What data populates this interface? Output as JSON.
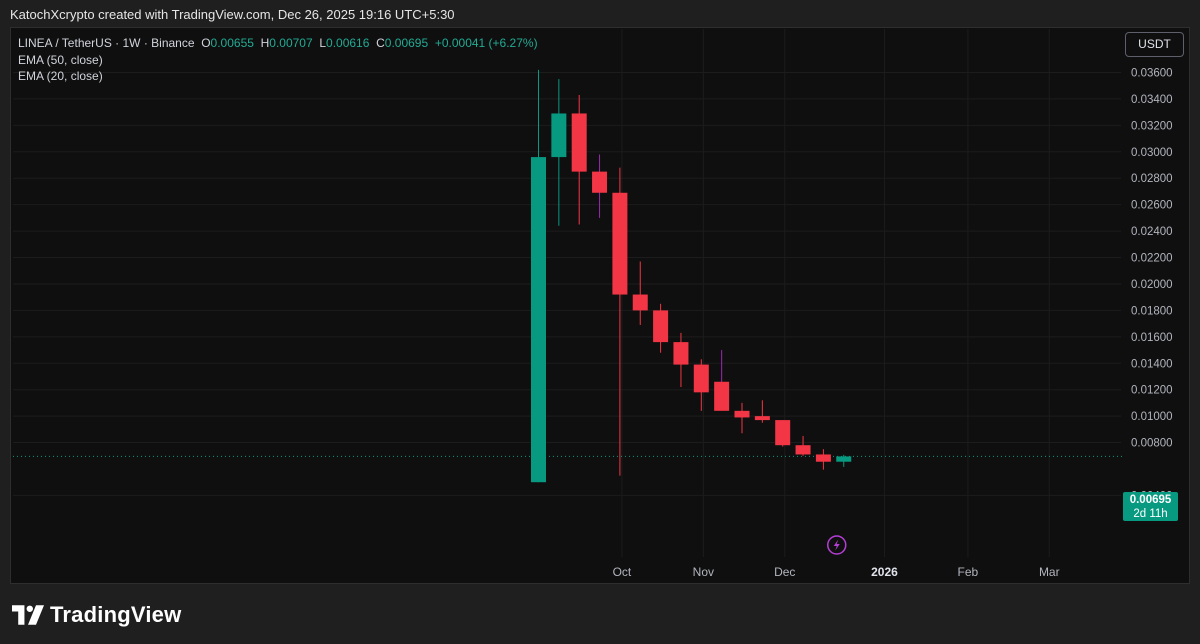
{
  "header": {
    "attribution": "KatochXcrypto created with TradingView.com, Dec 26, 2025 19:16 UTC+5:30"
  },
  "legend": {
    "symbol": "LINEA / TetherUS · 1W · Binance",
    "o_label": "O",
    "o_value": "0.00655",
    "h_label": "H",
    "h_value": "0.00707",
    "l_label": "L",
    "l_value": "0.00616",
    "c_label": "C",
    "c_value": "0.00695",
    "change": "+0.00041 (+6.27%)",
    "indicators": [
      "EMA (50, close)",
      "EMA (20, close)"
    ]
  },
  "currency_button": "USDT",
  "last_price": {
    "value": "0.00695",
    "countdown": "2d 11h"
  },
  "footer": {
    "brand": "TradingView"
  },
  "colors": {
    "up": "#089981",
    "down": "#f23645",
    "wick_purple": "#9c27b0",
    "background": "#0f0f0f"
  },
  "chart_data": {
    "type": "candlestick",
    "symbol": "LINEA / TetherUS",
    "interval": "1W",
    "exchange": "Binance",
    "ylim": [
      0.0036,
      0.0361
    ],
    "y_ticks": [
      "0.00400",
      "0.00800",
      "0.01000",
      "0.01200",
      "0.01400",
      "0.01600",
      "0.01800",
      "0.02000",
      "0.02200",
      "0.02400",
      "0.02600",
      "0.02800",
      "0.03000",
      "0.03200",
      "0.03400",
      "0.03600"
    ],
    "x_ticks": [
      {
        "label": "Oct",
        "week": 4.1
      },
      {
        "label": "Nov",
        "week": 8.1
      },
      {
        "label": "Dec",
        "week": 12.1
      },
      {
        "label": "2026",
        "week": 17.0
      },
      {
        "label": "Feb",
        "week": 21.1
      },
      {
        "label": "Mar",
        "week": 25.1
      }
    ],
    "candles": [
      {
        "week": 0,
        "o": 0.005,
        "h": 0.0362,
        "l": 0.005,
        "c": 0.0296
      },
      {
        "week": 1,
        "o": 0.0296,
        "h": 0.0355,
        "l": 0.0244,
        "c": 0.0329
      },
      {
        "week": 2,
        "o": 0.0329,
        "h": 0.0343,
        "l": 0.0245,
        "c": 0.0285
      },
      {
        "week": 3,
        "o": 0.0285,
        "h": 0.0298,
        "l": 0.025,
        "c": 0.0269
      },
      {
        "week": 4,
        "o": 0.0269,
        "h": 0.0288,
        "l": 0.0055,
        "c": 0.0192
      },
      {
        "week": 5,
        "o": 0.0192,
        "h": 0.0217,
        "l": 0.0169,
        "c": 0.018
      },
      {
        "week": 6,
        "o": 0.018,
        "h": 0.0185,
        "l": 0.0148,
        "c": 0.0156
      },
      {
        "week": 7,
        "o": 0.0156,
        "h": 0.0163,
        "l": 0.0122,
        "c": 0.0139
      },
      {
        "week": 8,
        "o": 0.0139,
        "h": 0.0143,
        "l": 0.0104,
        "c": 0.0118
      },
      {
        "week": 9,
        "o": 0.0126,
        "h": 0.015,
        "l": 0.0105,
        "c": 0.0104
      },
      {
        "week": 10,
        "o": 0.0104,
        "h": 0.011,
        "l": 0.0087,
        "c": 0.0099
      },
      {
        "week": 11,
        "o": 0.01,
        "h": 0.0112,
        "l": 0.0095,
        "c": 0.0097
      },
      {
        "week": 12,
        "o": 0.0097,
        "h": 0.0097,
        "l": 0.0077,
        "c": 0.0078
      },
      {
        "week": 13,
        "o": 0.0078,
        "h": 0.0085,
        "l": 0.007,
        "c": 0.0071
      },
      {
        "week": 14,
        "o": 0.0071,
        "h": 0.0075,
        "l": 0.00595,
        "c": 0.00655
      },
      {
        "week": 15,
        "o": 0.00655,
        "h": 0.00707,
        "l": 0.00616,
        "c": 0.00695
      }
    ],
    "last_price": 0.00695,
    "event_marker": {
      "type": "lightning",
      "week": 15
    }
  }
}
